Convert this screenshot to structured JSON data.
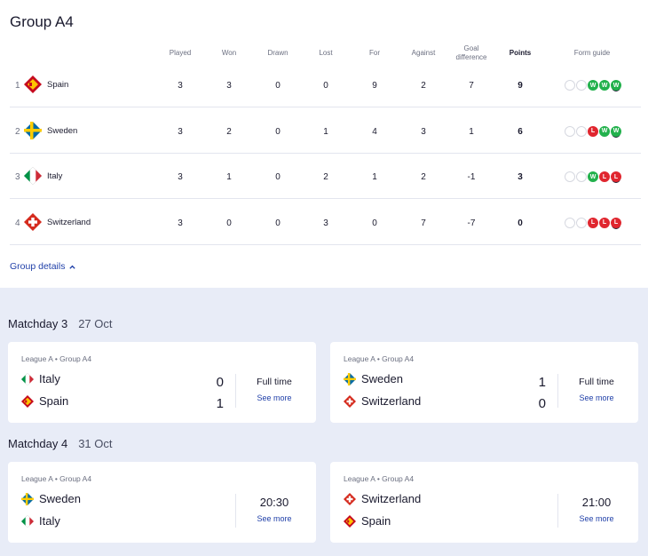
{
  "group": {
    "title": "Group A4",
    "details_label": "Group details"
  },
  "headers": {
    "played": "Played",
    "won": "Won",
    "drawn": "Drawn",
    "lost": "Lost",
    "for": "For",
    "against": "Against",
    "gd": "Goal difference",
    "points": "Points",
    "form": "Form guide"
  },
  "standings": [
    {
      "rank": "1",
      "team": "Spain",
      "played": "3",
      "won": "3",
      "drawn": "0",
      "lost": "0",
      "for": "9",
      "against": "2",
      "gd": "7",
      "points": "9",
      "form": [
        "",
        "",
        "W",
        "W",
        "W"
      ]
    },
    {
      "rank": "2",
      "team": "Sweden",
      "played": "3",
      "won": "2",
      "drawn": "0",
      "lost": "1",
      "for": "4",
      "against": "3",
      "gd": "1",
      "points": "6",
      "form": [
        "",
        "",
        "L",
        "W",
        "W"
      ]
    },
    {
      "rank": "3",
      "team": "Italy",
      "played": "3",
      "won": "1",
      "drawn": "0",
      "lost": "2",
      "for": "1",
      "against": "2",
      "gd": "-1",
      "points": "3",
      "form": [
        "",
        "",
        "W",
        "L",
        "L"
      ]
    },
    {
      "rank": "4",
      "team": "Switzerland",
      "played": "3",
      "won": "0",
      "drawn": "0",
      "lost": "3",
      "for": "0",
      "against": "7",
      "gd": "-7",
      "points": "0",
      "form": [
        "",
        "",
        "L",
        "L",
        "L"
      ]
    }
  ],
  "matchdays": [
    {
      "label": "Matchday 3",
      "date": "27 Oct",
      "matches": [
        {
          "league": "League A • Group A4",
          "home": "Italy",
          "away": "Spain",
          "home_score": "0",
          "away_score": "1",
          "status": "Full time",
          "see_more": "See more"
        },
        {
          "league": "League A • Group A4",
          "home": "Sweden",
          "away": "Switzerland",
          "home_score": "1",
          "away_score": "0",
          "status": "Full time",
          "see_more": "See more"
        }
      ]
    },
    {
      "label": "Matchday 4",
      "date": "31 Oct",
      "matches": [
        {
          "league": "League A • Group A4",
          "home": "Sweden",
          "away": "Italy",
          "time": "20:30",
          "see_more": "See more"
        },
        {
          "league": "League A • Group A4",
          "home": "Switzerland",
          "away": "Spain",
          "time": "21:00",
          "see_more": "See more"
        }
      ]
    }
  ],
  "colors": {
    "win": "#22b14c",
    "loss": "#e0262f",
    "link": "#1f3fa8",
    "band": "#e8ecf7"
  },
  "flag_icons": {
    "Spain": "spain-flag-icon",
    "Sweden": "sweden-flag-icon",
    "Italy": "italy-flag-icon",
    "Switzerland": "switzerland-flag-icon"
  }
}
